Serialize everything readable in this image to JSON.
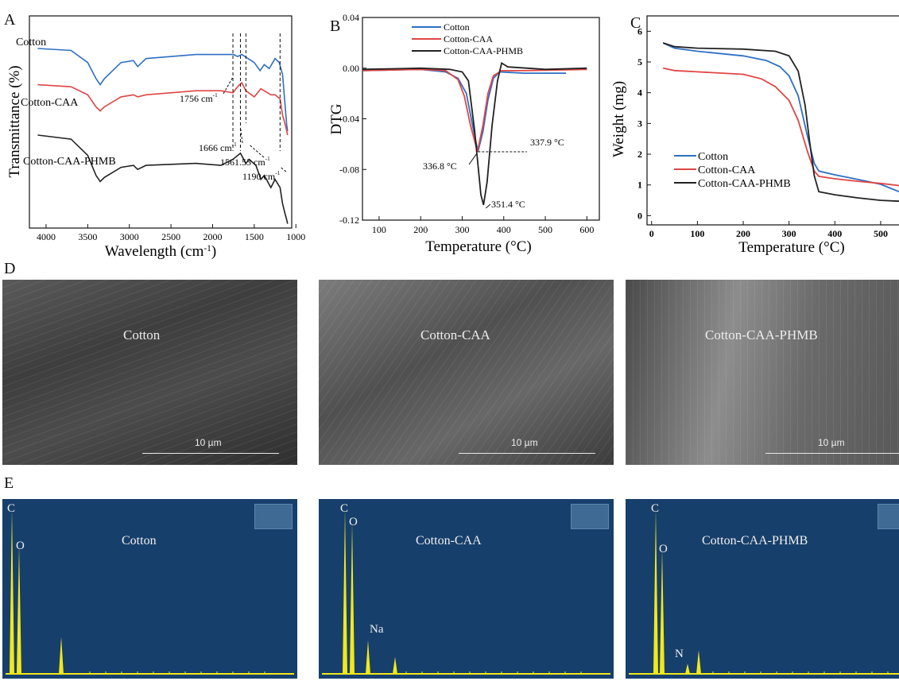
{
  "panels": {
    "a": "A",
    "b": "B",
    "c": "C",
    "d": "D",
    "e": "E"
  },
  "colors": {
    "cotton": "#2f6fc3",
    "caa": "#e04545",
    "phmb": "#222222",
    "eds_peak": "#f2e81a",
    "eds_bg": "#173f6b"
  },
  "chart_data": [
    {
      "type": "line",
      "panel": "A",
      "xlabel": "Wavelength (cm",
      "xlabel_sup": "-1",
      "xlabel_close": ")",
      "ylabel": "Transmittance (%)",
      "x_reversed": true,
      "xlim": [
        4200,
        1050
      ],
      "xticks": [
        4000,
        3500,
        3000,
        2500,
        2000,
        1500,
        1000
      ],
      "series": [
        {
          "name": "Cotton",
          "x": [
            4100,
            3700,
            3500,
            3400,
            3350,
            3300,
            3100,
            2950,
            2900,
            2800,
            2200,
            1900,
            1750,
            1700,
            1650,
            1500,
            1430,
            1380,
            1320,
            1250,
            1200,
            1160,
            1110,
            1100
          ],
          "y": [
            0.93,
            0.92,
            0.86,
            0.78,
            0.75,
            0.78,
            0.86,
            0.87,
            0.84,
            0.88,
            0.9,
            0.9,
            0.9,
            0.89,
            0.9,
            0.86,
            0.82,
            0.85,
            0.83,
            0.88,
            0.86,
            0.8,
            0.55,
            0.52
          ]
        },
        {
          "name": "Cotton-CAA",
          "x": [
            4100,
            3700,
            3500,
            3400,
            3350,
            3300,
            3100,
            2950,
            2900,
            2800,
            2200,
            1900,
            1756,
            1700,
            1650,
            1600,
            1500,
            1420,
            1380,
            1300,
            1250,
            1190,
            1160,
            1120,
            1100
          ],
          "y": [
            0.63,
            0.62,
            0.58,
            0.52,
            0.5,
            0.52,
            0.57,
            0.58,
            0.57,
            0.58,
            0.6,
            0.6,
            0.59,
            0.62,
            0.64,
            0.6,
            0.57,
            0.61,
            0.6,
            0.58,
            0.58,
            0.56,
            0.48,
            0.42,
            0.38
          ]
        },
        {
          "name": "Cotton-CAA-PHMB",
          "x": [
            4100,
            3700,
            3500,
            3400,
            3350,
            3300,
            3100,
            2950,
            2900,
            2800,
            2200,
            1900,
            1756,
            1666,
            1600,
            1561,
            1480,
            1420,
            1380,
            1300,
            1250,
            1190,
            1160,
            1130,
            1110,
            1100
          ],
          "y": [
            0.42,
            0.4,
            0.32,
            0.22,
            0.19,
            0.21,
            0.26,
            0.27,
            0.25,
            0.27,
            0.28,
            0.27,
            0.3,
            0.33,
            0.28,
            0.3,
            0.27,
            0.2,
            0.22,
            0.16,
            0.2,
            0.16,
            0.08,
            0.03,
            0.0,
            -0.02
          ]
        }
      ],
      "series_labels": [
        "Cotton",
        "Cotton-CAA",
        "Cotton-CAA-PHMB"
      ],
      "annotations": [
        {
          "text": "1756 cm",
          "sup": "-1",
          "x": 1756
        },
        {
          "text": "1666 cm",
          "sup": "-1",
          "x": 1666
        },
        {
          "text": "1561.53 cm",
          "sup": "-1",
          "x": 1561
        },
        {
          "text": "1190 cm",
          "sup": "-1",
          "x": 1190
        }
      ]
    },
    {
      "type": "line",
      "panel": "B",
      "xlabel": "Temperature (°C)",
      "ylabel": "DTG",
      "xlim": [
        60,
        630
      ],
      "ylim": [
        -0.12,
        0.04
      ],
      "xticks": [
        100,
        200,
        300,
        400,
        500,
        600
      ],
      "yticks": [
        "0.04",
        "0.00",
        "-0.04",
        "-0.08",
        "-0.12"
      ],
      "ytick_values": [
        0.04,
        0.0,
        -0.04,
        -0.08,
        -0.12
      ],
      "series": [
        {
          "name": "Cotton",
          "x": [
            60,
            200,
            260,
            290,
            310,
            325,
            337.9,
            350,
            362,
            375,
            390,
            450,
            550
          ],
          "y": [
            -0.002,
            -0.001,
            -0.003,
            -0.008,
            -0.02,
            -0.045,
            -0.066,
            -0.05,
            -0.025,
            -0.008,
            -0.003,
            -0.004,
            -0.004
          ]
        },
        {
          "name": "Cotton-CAA",
          "x": [
            60,
            200,
            260,
            290,
            305,
            320,
            336.8,
            350,
            362,
            375,
            395,
            450,
            600
          ],
          "y": [
            -0.002,
            -0.001,
            -0.002,
            -0.009,
            -0.022,
            -0.045,
            -0.066,
            -0.045,
            -0.02,
            -0.006,
            -0.002,
            -0.002,
            -0.001
          ]
        },
        {
          "name": "Cotton-CAA-PHMB",
          "x": [
            60,
            200,
            270,
            300,
            315,
            330,
            345,
            351.4,
            360,
            372,
            385,
            395,
            410,
            500,
            600
          ],
          "y": [
            -0.001,
            0.0,
            -0.001,
            -0.003,
            -0.01,
            -0.05,
            -0.1,
            -0.108,
            -0.09,
            -0.045,
            -0.01,
            0.004,
            0.001,
            -0.001,
            0.0
          ]
        }
      ],
      "legend": [
        "Cotton",
        "Cotton-CAA",
        "Cotton-CAA-PHMB"
      ],
      "legend_position": "top-center",
      "annotations": [
        {
          "text": "337.9 °C",
          "x": 337.9
        },
        {
          "text": "336.8 °C",
          "x": 336.8
        },
        {
          "text": "351.4 °C",
          "x": 351.4
        }
      ]
    },
    {
      "type": "line",
      "panel": "C",
      "xlabel": "Temperature (°C)",
      "ylabel": "Weight (mg)",
      "xlim": [
        -10,
        540
      ],
      "ylim": [
        -0.3,
        6.5
      ],
      "xticks": [
        0,
        100,
        200,
        300,
        400,
        500
      ],
      "yticks": [
        0,
        1,
        2,
        3,
        4,
        5,
        6
      ],
      "series": [
        {
          "name": "Cotton",
          "x": [
            25,
            50,
            100,
            200,
            250,
            280,
            300,
            320,
            340,
            355,
            365,
            400,
            450,
            500,
            540
          ],
          "y": [
            5.62,
            5.45,
            5.35,
            5.2,
            5.05,
            4.85,
            4.55,
            3.9,
            2.6,
            1.7,
            1.45,
            1.33,
            1.18,
            1.02,
            0.78
          ]
        },
        {
          "name": "Cotton-CAA",
          "x": [
            25,
            50,
            100,
            200,
            240,
            270,
            300,
            320,
            340,
            355,
            365,
            400,
            450,
            500,
            540
          ],
          "y": [
            4.8,
            4.72,
            4.68,
            4.6,
            4.45,
            4.2,
            3.75,
            3.1,
            2.1,
            1.45,
            1.28,
            1.2,
            1.12,
            1.05,
            0.98
          ]
        },
        {
          "name": "Cotton-CAA-PHMB",
          "x": [
            25,
            50,
            100,
            200,
            270,
            300,
            320,
            335,
            345,
            355,
            365,
            400,
            450,
            500,
            540
          ],
          "y": [
            5.62,
            5.5,
            5.45,
            5.42,
            5.35,
            5.2,
            4.7,
            3.6,
            2.4,
            1.3,
            0.78,
            0.68,
            0.58,
            0.5,
            0.47
          ]
        }
      ],
      "legend": [
        "Cotton",
        "Cotton-CAA",
        "Cotton-CAA-PHMB"
      ],
      "legend_position": "bottom-left"
    }
  ],
  "sem": [
    {
      "label": "Cotton",
      "scale": "10 µm"
    },
    {
      "label": "Cotton-CAA",
      "scale": "10 µm"
    },
    {
      "label": "Cotton-CAA-PHMB",
      "scale": "10 µm"
    }
  ],
  "eds": [
    {
      "label": "Cotton",
      "peaks": [
        {
          "el": "C",
          "h": 0.98
        },
        {
          "el": "O",
          "h": 0.76
        },
        {
          "el": "",
          "h": 0.22
        }
      ]
    },
    {
      "label": "Cotton-CAA",
      "peaks": [
        {
          "el": "C",
          "h": 0.98
        },
        {
          "el": "O",
          "h": 0.9
        },
        {
          "el": "Na",
          "h": 0.2
        },
        {
          "el": "",
          "h": 0.1
        }
      ]
    },
    {
      "label": "Cotton-CAA-PHMB",
      "peaks": [
        {
          "el": "C",
          "h": 0.98
        },
        {
          "el": "O",
          "h": 0.74
        },
        {
          "el": "N",
          "h": 0.06
        },
        {
          "el": "",
          "h": 0.14
        }
      ]
    }
  ]
}
